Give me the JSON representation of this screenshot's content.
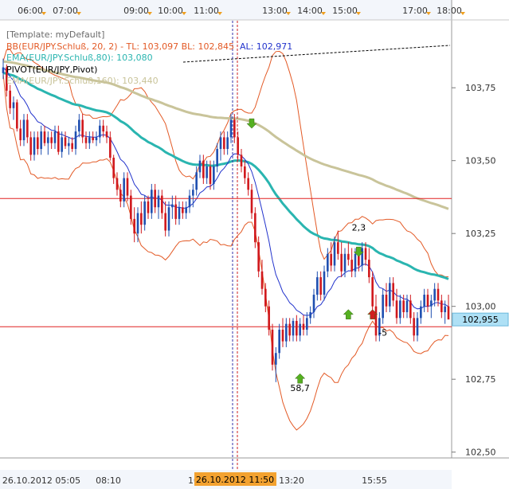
{
  "chart_data": {
    "type": "candlestick",
    "instrument": "EUR/JPY",
    "x_top_ticks": [
      "06:00",
      "07:00",
      "09:00",
      "10:00",
      "11:00",
      "13:00",
      "14:00",
      "15:00",
      "17:00",
      "18:00"
    ],
    "x_bottom_ticks": [
      "26.10.2012 05:05",
      "08:10",
      "10",
      "13:20",
      "15:55"
    ],
    "cursor_time_label": "26.10.2012 11:50",
    "y_ticks": [
      "103,75",
      "103,50",
      "103,25",
      "103,00",
      "102,75",
      "102,50"
    ],
    "ylim": [
      102.48,
      103.98
    ],
    "current_price_label": "102,955",
    "legend": {
      "template": "[Template: myDefault]",
      "bb": "BB(EUR/JPY.Schluß, 20, 2) -  TL: 103,097  BL: 102,845",
      "al": "AL: 102,971",
      "ema80": "EMA(EUR/JPY.Schluß,80): 103,080",
      "pivot": "PIVOT(EUR/JPY,Pivot)",
      "ema160": "EMA(EUR/JPY.Schluß,160): 103,440"
    },
    "horizontal_lines": [
      103.37,
      102.93
    ],
    "annotations": [
      {
        "text": "2,3",
        "x": 103,
        "y": 103.26
      },
      {
        "text": "-5",
        "x": 110,
        "y": 102.9
      },
      {
        "text": "58,7",
        "x": 86,
        "y": 102.71
      }
    ],
    "signal_arrows": [
      {
        "type": "down",
        "color": "green",
        "x": 72,
        "y": 103.63
      },
      {
        "type": "up",
        "color": "green",
        "x": 86,
        "y": 102.75
      },
      {
        "type": "down",
        "color": "green",
        "x": 103,
        "y": 103.19
      },
      {
        "type": "up",
        "color": "green",
        "x": 100,
        "y": 102.97
      },
      {
        "type": "up",
        "color": "red",
        "x": 107,
        "y": 102.97
      }
    ],
    "candles": [
      [
        103.8,
        103.85,
        103.78,
        103.82
      ],
      [
        103.82,
        103.83,
        103.72,
        103.74
      ],
      [
        103.74,
        103.76,
        103.66,
        103.68
      ],
      [
        103.68,
        103.72,
        103.64,
        103.7
      ],
      [
        103.7,
        103.71,
        103.6,
        103.61
      ],
      [
        103.61,
        103.64,
        103.55,
        103.57
      ],
      [
        103.57,
        103.66,
        103.55,
        103.64
      ],
      [
        103.64,
        103.66,
        103.56,
        103.58
      ],
      [
        103.58,
        103.6,
        103.5,
        103.52
      ],
      [
        103.52,
        103.6,
        103.5,
        103.58
      ],
      [
        103.58,
        103.6,
        103.52,
        103.54
      ],
      [
        103.54,
        103.62,
        103.52,
        103.6
      ],
      [
        103.6,
        103.62,
        103.55,
        103.56
      ],
      [
        103.56,
        103.6,
        103.52,
        103.58
      ],
      [
        103.58,
        103.6,
        103.54,
        103.56
      ],
      [
        103.56,
        103.62,
        103.54,
        103.6
      ],
      [
        103.6,
        103.62,
        103.52,
        103.53
      ],
      [
        103.53,
        103.6,
        103.51,
        103.58
      ],
      [
        103.58,
        103.6,
        103.54,
        103.55
      ],
      [
        103.55,
        103.58,
        103.52,
        103.56
      ],
      [
        103.56,
        103.58,
        103.53,
        103.54
      ],
      [
        103.54,
        103.62,
        103.52,
        103.6
      ],
      [
        103.6,
        103.66,
        103.58,
        103.64
      ],
      [
        103.64,
        103.66,
        103.56,
        103.58
      ],
      [
        103.58,
        103.6,
        103.54,
        103.56
      ],
      [
        103.56,
        103.6,
        103.54,
        103.58
      ],
      [
        103.58,
        103.6,
        103.56,
        103.57
      ],
      [
        103.57,
        103.6,
        103.55,
        103.58
      ],
      [
        103.58,
        103.64,
        103.56,
        103.62
      ],
      [
        103.62,
        103.64,
        103.58,
        103.6
      ],
      [
        103.6,
        103.62,
        103.56,
        103.58
      ],
      [
        103.58,
        103.6,
        103.5,
        103.51
      ],
      [
        103.51,
        103.52,
        103.42,
        103.44
      ],
      [
        103.44,
        103.46,
        103.38,
        103.4
      ],
      [
        103.4,
        103.42,
        103.34,
        103.36
      ],
      [
        103.36,
        103.46,
        103.34,
        103.44
      ],
      [
        103.44,
        103.46,
        103.36,
        103.38
      ],
      [
        103.38,
        103.4,
        103.28,
        103.3
      ],
      [
        103.3,
        103.34,
        103.22,
        103.25
      ],
      [
        103.25,
        103.34,
        103.22,
        103.32
      ],
      [
        103.32,
        103.36,
        103.25,
        103.28
      ],
      [
        103.28,
        103.38,
        103.26,
        103.36
      ],
      [
        103.36,
        103.38,
        103.3,
        103.32
      ],
      [
        103.32,
        103.42,
        103.3,
        103.4
      ],
      [
        103.4,
        103.42,
        103.32,
        103.34
      ],
      [
        103.34,
        103.4,
        103.3,
        103.38
      ],
      [
        103.38,
        103.4,
        103.3,
        103.32
      ],
      [
        103.32,
        103.36,
        103.24,
        103.26
      ],
      [
        103.26,
        103.36,
        103.24,
        103.34
      ],
      [
        103.34,
        103.38,
        103.3,
        103.35
      ],
      [
        103.35,
        103.38,
        103.28,
        103.3
      ],
      [
        103.3,
        103.36,
        103.28,
        103.34
      ],
      [
        103.34,
        103.36,
        103.3,
        103.32
      ],
      [
        103.32,
        103.36,
        103.3,
        103.34
      ],
      [
        103.34,
        103.4,
        103.32,
        103.38
      ],
      [
        103.38,
        103.42,
        103.34,
        103.4
      ],
      [
        103.4,
        103.48,
        103.38,
        103.46
      ],
      [
        103.46,
        103.52,
        103.44,
        103.5
      ],
      [
        103.5,
        103.52,
        103.42,
        103.44
      ],
      [
        103.44,
        103.5,
        103.42,
        103.48
      ],
      [
        103.48,
        103.5,
        103.4,
        103.42
      ],
      [
        103.42,
        103.5,
        103.4,
        103.48
      ],
      [
        103.48,
        103.56,
        103.46,
        103.54
      ],
      [
        103.54,
        103.6,
        103.5,
        103.58
      ],
      [
        103.58,
        103.6,
        103.52,
        103.54
      ],
      [
        103.54,
        103.6,
        103.52,
        103.58
      ],
      [
        103.58,
        103.66,
        103.56,
        103.64
      ],
      [
        103.64,
        103.66,
        103.56,
        103.58
      ],
      [
        103.58,
        103.6,
        103.5,
        103.52
      ],
      [
        103.52,
        103.54,
        103.46,
        103.48
      ],
      [
        103.48,
        103.5,
        103.42,
        103.44
      ],
      [
        103.44,
        103.46,
        103.38,
        103.4
      ],
      [
        103.4,
        103.42,
        103.3,
        103.32
      ],
      [
        103.32,
        103.34,
        103.2,
        103.22
      ],
      [
        103.22,
        103.24,
        103.1,
        103.12
      ],
      [
        103.12,
        103.16,
        103.04,
        103.06
      ],
      [
        103.06,
        103.08,
        102.98,
        103.0
      ],
      [
        103.0,
        103.02,
        102.9,
        102.92
      ],
      [
        102.92,
        102.94,
        102.78,
        102.8
      ],
      [
        102.8,
        102.86,
        102.74,
        102.84
      ],
      [
        102.84,
        102.94,
        102.82,
        102.92
      ],
      [
        102.92,
        102.96,
        102.86,
        102.88
      ],
      [
        102.88,
        102.96,
        102.86,
        102.94
      ],
      [
        102.94,
        102.96,
        102.88,
        102.9
      ],
      [
        102.9,
        102.96,
        102.88,
        102.95
      ],
      [
        102.95,
        102.97,
        102.88,
        102.9
      ],
      [
        102.9,
        102.96,
        102.88,
        102.94
      ],
      [
        102.94,
        102.97,
        102.9,
        102.92
      ],
      [
        102.92,
        102.98,
        102.9,
        102.96
      ],
      [
        102.96,
        103.0,
        102.94,
        102.98
      ],
      [
        102.98,
        103.06,
        102.96,
        103.04
      ],
      [
        103.04,
        103.12,
        103.02,
        103.1
      ],
      [
        103.1,
        103.12,
        103.02,
        103.04
      ],
      [
        103.04,
        103.14,
        103.02,
        103.12
      ],
      [
        103.12,
        103.2,
        103.1,
        103.18
      ],
      [
        103.18,
        103.22,
        103.12,
        103.14
      ],
      [
        103.14,
        103.24,
        103.12,
        103.22
      ],
      [
        103.22,
        103.26,
        103.16,
        103.18
      ],
      [
        103.18,
        103.22,
        103.1,
        103.12
      ],
      [
        103.12,
        103.2,
        103.1,
        103.18
      ],
      [
        103.18,
        103.22,
        103.14,
        103.16
      ],
      [
        103.16,
        103.2,
        103.1,
        103.12
      ],
      [
        103.12,
        103.2,
        103.1,
        103.18
      ],
      [
        103.18,
        103.2,
        103.12,
        103.14
      ],
      [
        103.14,
        103.22,
        103.12,
        103.2
      ],
      [
        103.2,
        103.22,
        103.14,
        103.16
      ],
      [
        103.16,
        103.2,
        103.08,
        103.1
      ],
      [
        103.1,
        103.12,
        102.98,
        103.0
      ],
      [
        103.0,
        103.04,
        102.88,
        102.9
      ],
      [
        102.9,
        102.98,
        102.88,
        102.96
      ],
      [
        102.96,
        103.06,
        102.94,
        103.04
      ],
      [
        103.04,
        103.08,
        102.98,
        103.0
      ],
      [
        103.0,
        103.1,
        102.98,
        103.08
      ],
      [
        103.08,
        103.1,
        103.0,
        103.02
      ],
      [
        103.02,
        103.06,
        102.94,
        102.96
      ],
      [
        102.96,
        103.04,
        102.94,
        103.02
      ],
      [
        103.02,
        103.04,
        102.96,
        102.98
      ],
      [
        102.98,
        103.04,
        102.96,
        103.02
      ],
      [
        103.02,
        103.04,
        102.94,
        102.96
      ],
      [
        102.96,
        102.98,
        102.88,
        102.9
      ],
      [
        102.9,
        102.98,
        102.88,
        102.96
      ],
      [
        102.96,
        103.02,
        102.94,
        103.0
      ],
      [
        103.0,
        103.06,
        102.98,
        103.04
      ],
      [
        103.04,
        103.06,
        102.98,
        103.0
      ],
      [
        103.0,
        103.04,
        102.96,
        103.02
      ],
      [
        103.02,
        103.08,
        103.0,
        103.06
      ],
      [
        103.06,
        103.08,
        103.0,
        103.02
      ],
      [
        103.02,
        103.04,
        102.96,
        102.98
      ],
      [
        102.98,
        103.02,
        102.94,
        103.0
      ],
      [
        103.0,
        103.04,
        102.96,
        102.955
      ]
    ]
  }
}
